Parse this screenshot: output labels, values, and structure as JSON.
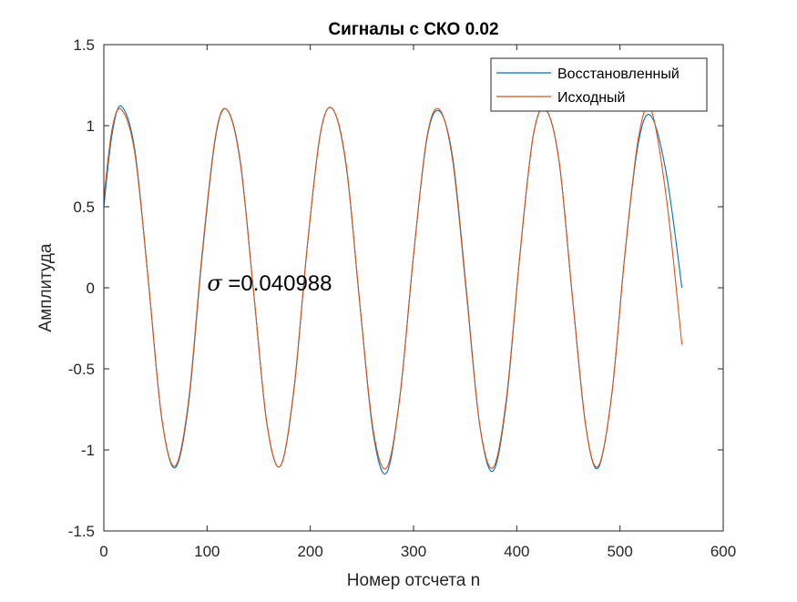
{
  "chart_data": {
    "type": "line",
    "title": "Сигналы с СКО 0.02",
    "xlabel": "Номер отсчета n",
    "ylabel": "Амплитуда",
    "xlim": [
      0,
      600
    ],
    "ylim": [
      -1.5,
      1.5
    ],
    "xticks": [
      0,
      100,
      200,
      300,
      400,
      500,
      600
    ],
    "yticks": [
      -1.5,
      -1,
      -0.5,
      0,
      0.5,
      1,
      1.5
    ],
    "xtick_labels": [
      "0",
      "100",
      "200",
      "300",
      "400",
      "500",
      "600"
    ],
    "ytick_labels": [
      "-1.5",
      "-1",
      "-0.5",
      "0",
      "0.5",
      "1",
      "1.5"
    ],
    "grid": false,
    "legend_position": "top-right",
    "annotation": {
      "symbol": "σ",
      "text": " =0.040988",
      "x": 100,
      "y": 0
    },
    "series": [
      {
        "name": "Восстановленный",
        "color": "#0072BD",
        "x": [
          0,
          8,
          17,
          30,
          43,
          56,
          69,
          82,
          95,
          108,
          119,
          132,
          145,
          158,
          171,
          184,
          197,
          210,
          222,
          235,
          248,
          261,
          274,
          287,
          300,
          313,
          325,
          338,
          351,
          364,
          377,
          390,
          403,
          416,
          428,
          441,
          454,
          467,
          479,
          492,
          505,
          518,
          530,
          545,
          560
        ],
        "y": [
          0.5,
          0.95,
          1.12,
          0.85,
          0.05,
          -0.8,
          -1.11,
          -0.72,
          0.18,
          0.92,
          1.1,
          0.79,
          -0.02,
          -0.84,
          -1.1,
          -0.64,
          0.25,
          0.96,
          1.1,
          0.74,
          -0.1,
          -0.9,
          -1.14,
          -0.66,
          0.2,
          0.92,
          1.09,
          0.8,
          0.0,
          -0.84,
          -1.13,
          -0.7,
          0.2,
          0.94,
          1.1,
          0.78,
          -0.06,
          -0.86,
          -1.11,
          -0.66,
          0.22,
          0.9,
          1.06,
          0.7,
          0.0
        ]
      },
      {
        "name": "Исходный",
        "color": "#D95319",
        "x": [
          0,
          8,
          17,
          30,
          43,
          56,
          69,
          82,
          95,
          108,
          119,
          132,
          145,
          158,
          171,
          184,
          197,
          210,
          222,
          235,
          248,
          261,
          274,
          287,
          300,
          313,
          325,
          338,
          351,
          364,
          377,
          390,
          403,
          416,
          428,
          441,
          454,
          467,
          479,
          492,
          505,
          518,
          530,
          545,
          560
        ],
        "y": [
          0.55,
          0.98,
          1.1,
          0.83,
          0.05,
          -0.8,
          -1.1,
          -0.7,
          0.2,
          0.93,
          1.1,
          0.78,
          -0.02,
          -0.84,
          -1.1,
          -0.63,
          0.25,
          0.96,
          1.1,
          0.75,
          -0.1,
          -0.88,
          -1.11,
          -0.66,
          0.2,
          0.93,
          1.1,
          0.78,
          -0.02,
          -0.84,
          -1.11,
          -0.68,
          0.2,
          0.94,
          1.1,
          0.78,
          -0.06,
          -0.86,
          -1.1,
          -0.66,
          0.22,
          0.93,
          1.1,
          0.55,
          -0.35
        ]
      }
    ]
  }
}
